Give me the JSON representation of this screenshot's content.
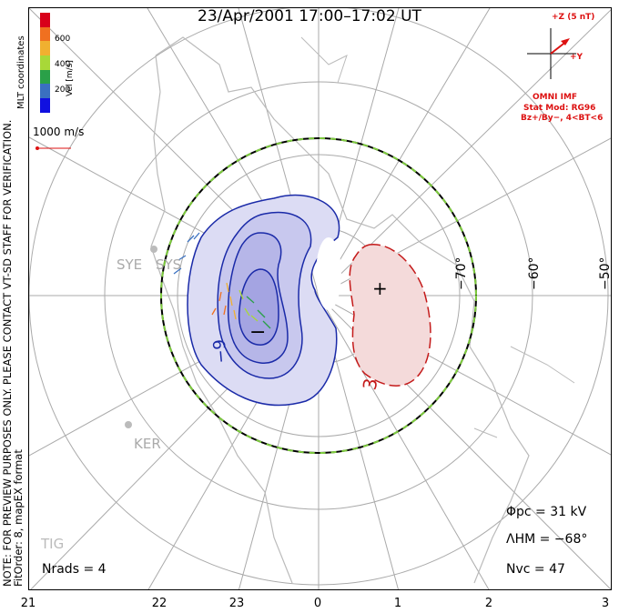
{
  "title": "23/Apr/2001 17:00–17:02 UT",
  "note": {
    "line1": "NOTE: FOR PREVIEW PURPOSES ONLY. PLEASE CONTACT VT-SD STAFF FOR VERIFICATION.",
    "line2": "FitOrder: 8, mapEX format"
  },
  "coordinate_label": "MLT coordinates",
  "colorbar": {
    "title": "Vel [m/s]",
    "ticks": [
      "600",
      "400",
      "200"
    ],
    "colors": [
      "#d8001a",
      "#f07020",
      "#f0b030",
      "#a8d838",
      "#2aa048",
      "#3a70c0",
      "#1010e0"
    ]
  },
  "velocity_scale": "1000 m/s",
  "imf": {
    "z_label": "+Z (5 nT)",
    "y_label": "+Y",
    "source": "OMNI IMF",
    "stat_mod": "Stat Mod: RG96",
    "condition": "Bz+/By−, 4<BT<6"
  },
  "latitude_labels": [
    "−70°",
    "−60°",
    "−50°"
  ],
  "mlt_labels": [
    "21",
    "22",
    "23",
    "0",
    "1",
    "2",
    "3"
  ],
  "stations": [
    "SYE",
    "SYS",
    "KER",
    "TIG"
  ],
  "contours": {
    "negative_label": "−9",
    "positive_label": "3",
    "min_marker": "−",
    "max_marker": "+",
    "negative_color": "#1a2aa8",
    "positive_color": "#c41a1a"
  },
  "stats": {
    "phi_pc": "Φpc = 31 kV",
    "lambda_hm": "ΛHM = −68°",
    "n_vc": "Nvc = 47",
    "n_rads": "Nrads = 4"
  }
}
